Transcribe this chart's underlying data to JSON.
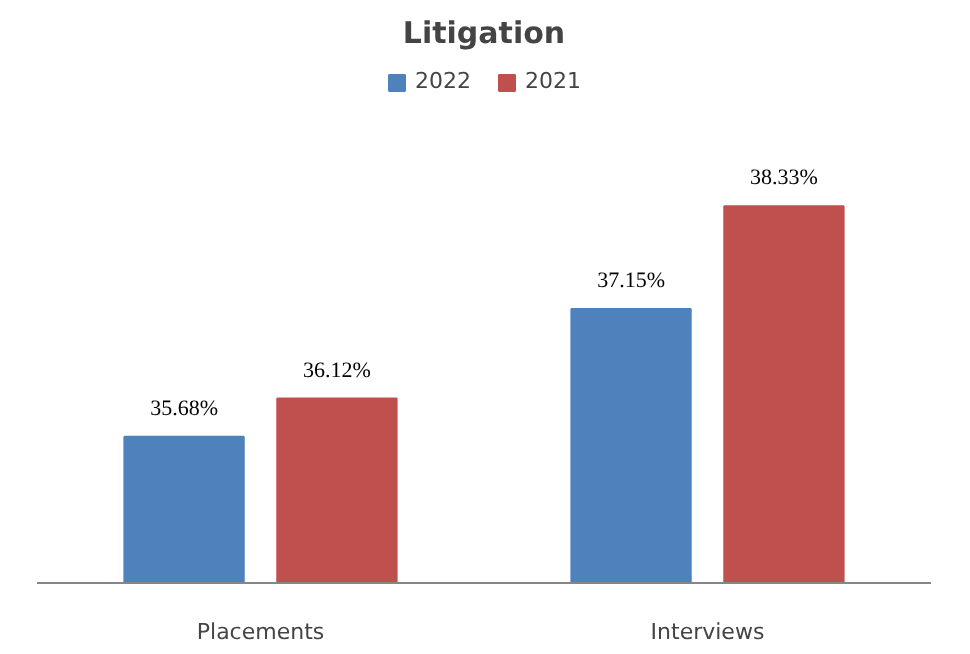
{
  "chart_data": {
    "type": "bar",
    "title": "Litigation",
    "categories": [
      "Placements",
      "Interviews"
    ],
    "ylim": [
      34,
      40
    ],
    "legend": "top",
    "grid": false,
    "tick_labels": "x",
    "series": [
      {
        "name": "2022",
        "color": "#4f81bd",
        "values": [
          35.68,
          37.15
        ],
        "value_labels": [
          "35.68%",
          "37.15%"
        ]
      },
      {
        "name": "2021",
        "color": "#c0504d",
        "values": [
          36.12,
          38.33
        ],
        "value_labels": [
          "36.12%",
          "38.33%"
        ]
      }
    ]
  }
}
